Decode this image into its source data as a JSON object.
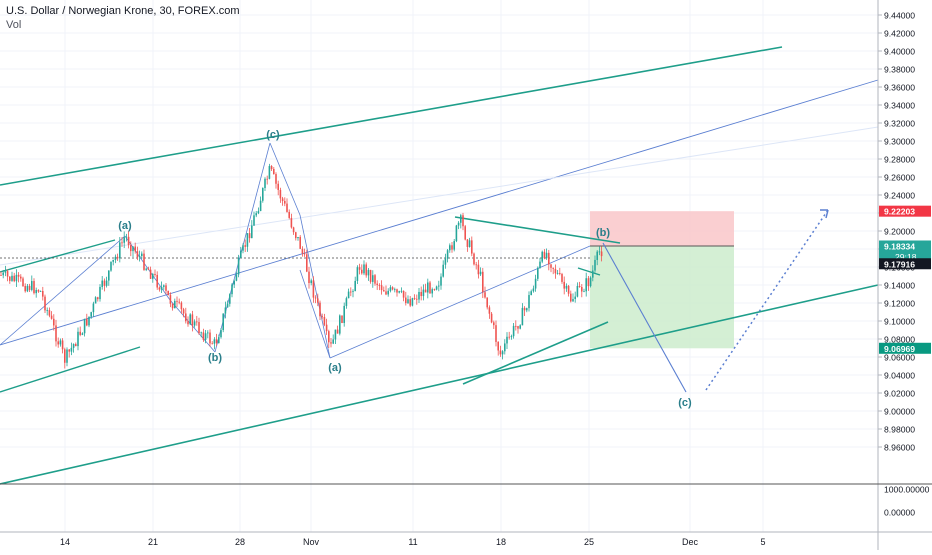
{
  "header": {
    "title": "U.S. Dollar / Norwegian Krone, 30, FOREX.com",
    "indicator": "Vol"
  },
  "chart_data": {
    "type": "candlestick",
    "price_axis": {
      "ticks": [
        "9.44000",
        "9.42000",
        "9.40000",
        "9.38000",
        "9.36000",
        "9.34000",
        "9.32000",
        "9.30000",
        "9.28000",
        "9.26000",
        "9.24000",
        "9.22000",
        "9.20000",
        "9.18000",
        "9.16000",
        "9.14000",
        "9.12000",
        "9.10000",
        "9.08000",
        "9.06000",
        "9.04000",
        "9.02000",
        "9.00000",
        "8.98000",
        "8.96000"
      ],
      "range": [
        8.945,
        9.455
      ]
    },
    "volume_axis": {
      "ticks": [
        "1000.00000",
        "0.00000"
      ]
    },
    "time_axis": {
      "ticks": [
        "14",
        "21",
        "28",
        "Nov",
        "11",
        "18",
        "25",
        "Dec",
        "5"
      ]
    },
    "price_labels": {
      "stop": {
        "value": "9.22203",
        "color": "#f23645"
      },
      "last": {
        "value": "9.18334",
        "countdown": "29:18",
        "color": "#26a69a"
      },
      "current": {
        "value": "9.17916",
        "color": "#131722"
      },
      "target": {
        "value": "9.06969",
        "color": "#089981"
      }
    },
    "wave_labels": [
      "(a)",
      "(b)",
      "(c)",
      "(a)",
      "(b)",
      "(c)"
    ],
    "colors": {
      "up": "#26a69a",
      "down": "#ef5350",
      "channel": "#1e9e8a",
      "trend": "#5b7fd1",
      "risk_zone": "#f9c7c9",
      "reward_zone": "#cdeccc"
    }
  }
}
